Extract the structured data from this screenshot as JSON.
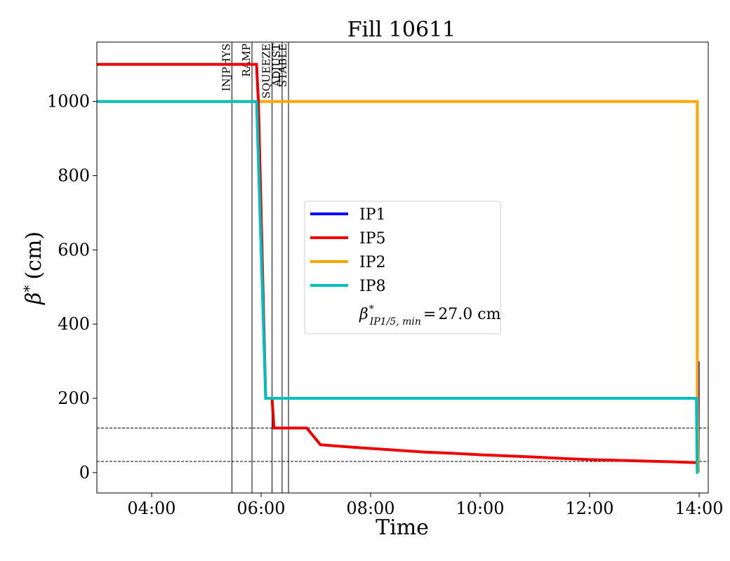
{
  "chart_data": {
    "type": "line",
    "title": "Fill 10611",
    "xlabel": "Time",
    "ylabel_main": "β",
    "ylabel_sup": "*",
    "ylabel_unit": "(cm)",
    "xlim": [
      "03:00",
      "14:10"
    ],
    "ylim": [
      -55,
      1160
    ],
    "x_ticks": [
      "04:00",
      "06:00",
      "08:00",
      "10:00",
      "12:00",
      "14:00"
    ],
    "y_ticks": [
      0,
      200,
      400,
      600,
      800,
      1000
    ],
    "grid": false,
    "legend_position": "center",
    "phases": [
      {
        "label": "INJPHYS",
        "time": "05:28"
      },
      {
        "label": "RAMP",
        "time": "05:50"
      },
      {
        "label": "SQUEEZE",
        "time": "06:12"
      },
      {
        "label": "ADJUST",
        "time": "06:23"
      },
      {
        "label": "STABLE",
        "time": "06:30"
      }
    ],
    "reference_lines": [
      120,
      30
    ],
    "series": [
      {
        "name": "IP1",
        "color": "#0000ff",
        "points": [
          [
            "13:59",
            300
          ],
          [
            "13:59",
            0
          ]
        ]
      },
      {
        "name": "IP5",
        "color": "#ee0000",
        "points": [
          [
            "03:00",
            1100
          ],
          [
            "05:55",
            1100
          ],
          [
            "05:57",
            1000
          ],
          [
            "06:05",
            200
          ],
          [
            "06:12",
            200
          ],
          [
            "06:14",
            120
          ],
          [
            "06:50",
            120
          ],
          [
            "07:05",
            75
          ],
          [
            "07:30",
            70
          ],
          [
            "08:00",
            65
          ],
          [
            "08:30",
            60
          ],
          [
            "09:00",
            55
          ],
          [
            "09:30",
            52
          ],
          [
            "10:00",
            48
          ],
          [
            "10:30",
            45
          ],
          [
            "11:00",
            42
          ],
          [
            "11:30",
            38
          ],
          [
            "12:00",
            35
          ],
          [
            "12:30",
            33
          ],
          [
            "13:00",
            31
          ],
          [
            "13:30",
            29
          ],
          [
            "13:55",
            27
          ],
          [
            "13:58",
            27
          ]
        ]
      },
      {
        "name": "IP2",
        "color": "#ffa500",
        "points": [
          [
            "03:00",
            1000
          ],
          [
            "13:58",
            1000
          ],
          [
            "13:58",
            200
          ],
          [
            "13:59",
            0
          ]
        ]
      },
      {
        "name": "IP8",
        "color": "#00bfbf",
        "points": [
          [
            "03:00",
            1000
          ],
          [
            "05:55",
            1000
          ],
          [
            "06:05",
            200
          ],
          [
            "13:57",
            200
          ],
          [
            "13:58",
            0
          ],
          [
            "13:59",
            0
          ]
        ]
      }
    ],
    "annotation": {
      "beta": "β",
      "sup": "*",
      "sub": "IP1/5, min",
      "equals": "=",
      "value": "27.0 cm"
    }
  }
}
